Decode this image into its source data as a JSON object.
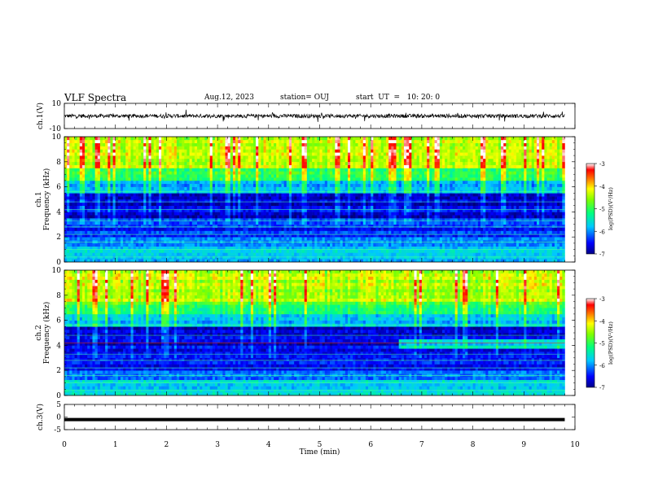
{
  "header": {
    "title": "VLF Spectra",
    "date": "Aug.12, 2023",
    "station": "station= OUJ",
    "start_ut": "start  UT  =   10: 20: 0"
  },
  "chart_data": [
    {
      "type": "line",
      "name": "panel-ch1-waveform",
      "ylabel": "ch.1(V)",
      "ylim": [
        -10,
        10
      ],
      "yticks": [
        "10",
        "-10"
      ],
      "xlim": [
        0,
        10
      ],
      "description_values": {
        "baseline": 0,
        "typical_amplitude": 1.5,
        "spike_amplitude": 4
      }
    },
    {
      "type": "heatmap",
      "name": "panel-ch1-spectrogram",
      "ylabel": "ch.1 Frequency (kHz)",
      "ylabel_line1": "ch.1",
      "ylabel_line2": "Frequency (kHz)",
      "ylim": [
        0,
        10
      ],
      "yticks": [
        "0",
        "2",
        "4",
        "6",
        "8",
        "10"
      ],
      "xlim": [
        0,
        10
      ],
      "data_end_min": 9.8,
      "colorbar": {
        "label": "log(PSD)(V²/Hz)",
        "ticks": [
          "-3",
          "-4",
          "-5",
          "-6",
          "-7"
        ],
        "range": [
          -7,
          -3
        ]
      }
    },
    {
      "type": "heatmap",
      "name": "panel-ch2-spectrogram",
      "ylabel": "ch.2 Frequency (kHz)",
      "ylabel_line1": "ch.2",
      "ylabel_line2": "Frequency (kHz)",
      "ylim": [
        0,
        10
      ],
      "yticks": [
        "0",
        "2",
        "4",
        "6",
        "8",
        "10"
      ],
      "xlim": [
        0,
        10
      ],
      "data_end_min": 9.8,
      "colorbar": {
        "label": "log(PSD)(V²/Hz)",
        "ticks": [
          "-3",
          "-4",
          "-5",
          "-6",
          "-7"
        ],
        "range": [
          -7,
          -3
        ]
      }
    },
    {
      "type": "line",
      "name": "panel-ch3-waveform",
      "ylabel": "ch.3(V)",
      "ylim": [
        -5,
        5
      ],
      "yticks": [
        "5",
        "0",
        "-5"
      ],
      "xlim": [
        0,
        10
      ],
      "xlabel": "Time  (min)",
      "xticks": [
        "0",
        "1",
        "2",
        "3",
        "4",
        "5",
        "6",
        "7",
        "8",
        "9",
        "10"
      ],
      "description_values": {
        "level": -1
      }
    }
  ]
}
